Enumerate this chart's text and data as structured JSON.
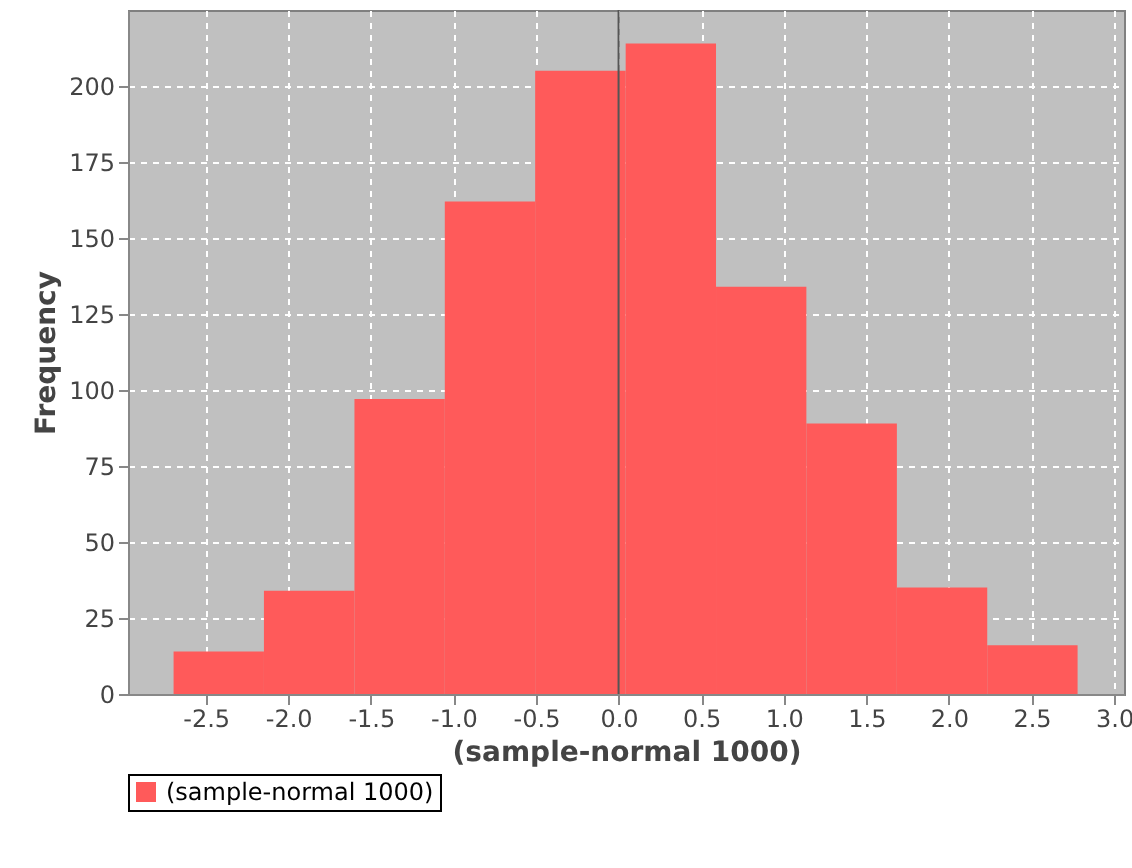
{
  "chart_data": {
    "type": "histogram",
    "xlabel": "(sample-normal 1000)",
    "ylabel": "Frequency",
    "bins": [
      -2.694,
      -2.147,
      -1.599,
      -1.052,
      -0.505,
      0.043,
      0.59,
      1.137,
      1.685,
      2.232,
      2.779
    ],
    "series": [
      {
        "name": "(sample-normal 1000)",
        "color": "#ff5a5a",
        "values": [
          14,
          34,
          97,
          162,
          205,
          214,
          134,
          89,
          35,
          16
        ]
      }
    ],
    "xlim": [
      -2.97,
      3.06
    ],
    "xticks": [
      {
        "value": -2.5,
        "label": "-2.5"
      },
      {
        "value": -2,
        "label": "-2.0"
      },
      {
        "value": -1.5,
        "label": "-1.5"
      },
      {
        "value": -1,
        "label": "-1.0"
      },
      {
        "value": -0.5,
        "label": "-0.5"
      },
      {
        "value": 0,
        "label": "0.0"
      },
      {
        "value": 0.5,
        "label": "0.5"
      },
      {
        "value": 1,
        "label": "1.0"
      },
      {
        "value": 1.5,
        "label": "1.5"
      },
      {
        "value": 2,
        "label": "2.0"
      },
      {
        "value": 2.5,
        "label": "2.5"
      },
      {
        "value": 3,
        "label": "3.0"
      }
    ],
    "ylim": [
      0,
      225
    ],
    "yticks": [
      0,
      25,
      50,
      75,
      100,
      125,
      150,
      175,
      200
    ],
    "ref_lines": [
      {
        "axis": "x",
        "value": 0,
        "color": "#555555"
      }
    ],
    "grid": true,
    "legend": "bottom"
  }
}
